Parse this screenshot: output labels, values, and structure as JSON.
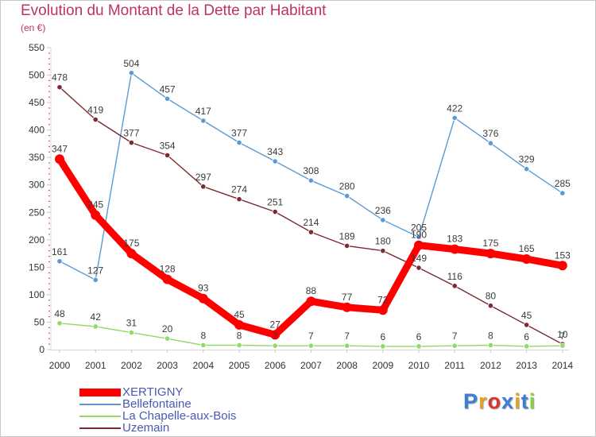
{
  "chart_data": {
    "type": "line",
    "title": "Evolution du Montant de la Dette par Habitant",
    "subtitle": "(en €)",
    "categories": [
      "2000",
      "2001",
      "2002",
      "2003",
      "2004",
      "2005",
      "2006",
      "2007",
      "2008",
      "2009",
      "2010",
      "2011",
      "2012",
      "2013",
      "2014"
    ],
    "ylim": [
      0,
      550
    ],
    "yticks": [
      0,
      50,
      100,
      150,
      200,
      250,
      300,
      350,
      400,
      450,
      500,
      550
    ],
    "grid": false,
    "legend_position": "bottom-left",
    "series": [
      {
        "name": "XERTIGNY",
        "color": "#ff0000",
        "values": [
          347,
          245,
          175,
          128,
          93,
          45,
          27,
          88,
          77,
          72,
          190,
          183,
          175,
          165,
          153
        ]
      },
      {
        "name": "Bellefontaine",
        "color": "#5b9bd5",
        "values": [
          161,
          127,
          504,
          457,
          417,
          377,
          343,
          308,
          280,
          236,
          205,
          422,
          376,
          329,
          285
        ]
      },
      {
        "name": "La Chapelle-aux-Bois",
        "color": "#8fdb63",
        "values": [
          48,
          42,
          31,
          20,
          8,
          8,
          7,
          7,
          7,
          6,
          6,
          7,
          8,
          6,
          7
        ]
      },
      {
        "name": "Uzemain",
        "color": "#7a2a30",
        "values": [
          478,
          419,
          377,
          354,
          297,
          274,
          251,
          214,
          189,
          180,
          149,
          116,
          80,
          45,
          10
        ]
      }
    ],
    "data_labels": [
      [
        "347",
        "245",
        "175",
        "128",
        "93",
        "45",
        "27",
        "88",
        "77",
        "72",
        "190",
        "183",
        "175",
        "165",
        "153"
      ],
      [
        "161",
        "127",
        "504",
        "457",
        "417",
        "377",
        "343",
        "308",
        "280",
        "236",
        "205",
        "422",
        "376",
        "329",
        "285"
      ],
      [
        "48",
        "42",
        "31",
        "20",
        "8",
        "8",
        "7",
        "7",
        "7",
        "6",
        "6",
        "7",
        "8",
        "6",
        "7"
      ],
      [
        "478",
        "419",
        "377",
        "354",
        "297",
        "274",
        "251",
        "214",
        "189",
        "180",
        "149",
        "116",
        "80",
        "45",
        "10"
      ]
    ]
  },
  "brand": {
    "text": "Proxiti"
  }
}
